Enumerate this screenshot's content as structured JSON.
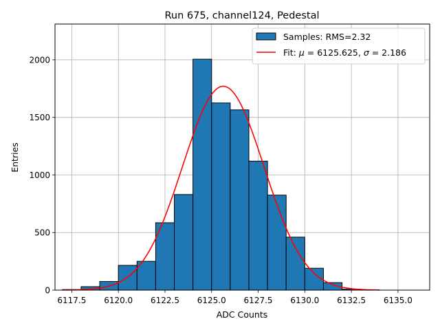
{
  "chart_data": {
    "type": "bar",
    "title": "Run 675, channel124, Pedestal",
    "xlabel": "ADC Counts",
    "ylabel": "Entries",
    "xlim": [
      6116.6,
      6136.7
    ],
    "ylim": [
      0,
      2310
    ],
    "grid": true,
    "legend_position": "top-right",
    "x_ticks": [
      {
        "value": 6117.5,
        "label": "6117.5"
      },
      {
        "value": 6120.0,
        "label": "6120.0"
      },
      {
        "value": 6122.5,
        "label": "6122.5"
      },
      {
        "value": 6125.0,
        "label": "6125.0"
      },
      {
        "value": 6127.5,
        "label": "6127.5"
      },
      {
        "value": 6130.0,
        "label": "6130.0"
      },
      {
        "value": 6132.5,
        "label": "6132.5"
      },
      {
        "value": 6135.0,
        "label": "6135.0"
      }
    ],
    "y_ticks": [
      {
        "value": 0,
        "label": "0"
      },
      {
        "value": 500,
        "label": "500"
      },
      {
        "value": 1000,
        "label": "1000"
      },
      {
        "value": 1500,
        "label": "1500"
      },
      {
        "value": 2000,
        "label": "2000"
      }
    ],
    "histogram": {
      "name": "Samples: RMS=2.32",
      "color": "#1f77b4",
      "edge_color": "#000000",
      "bins": [
        {
          "x0": 6117.0,
          "x1": 6118.0,
          "value": 5
        },
        {
          "x0": 6118.0,
          "x1": 6119.0,
          "value": 30
        },
        {
          "x0": 6119.0,
          "x1": 6120.0,
          "value": 75
        },
        {
          "x0": 6120.0,
          "x1": 6121.0,
          "value": 215
        },
        {
          "x0": 6121.0,
          "x1": 6122.0,
          "value": 250
        },
        {
          "x0": 6122.0,
          "x1": 6123.0,
          "value": 585
        },
        {
          "x0": 6123.0,
          "x1": 6124.0,
          "value": 830
        },
        {
          "x0": 6124.0,
          "x1": 6125.0,
          "value": 2005
        },
        {
          "x0": 6125.0,
          "x1": 6126.0,
          "value": 1625
        },
        {
          "x0": 6126.0,
          "x1": 6127.0,
          "value": 1565
        },
        {
          "x0": 6127.0,
          "x1": 6128.0,
          "value": 1120
        },
        {
          "x0": 6128.0,
          "x1": 6129.0,
          "value": 825
        },
        {
          "x0": 6129.0,
          "x1": 6130.0,
          "value": 460
        },
        {
          "x0": 6130.0,
          "x1": 6131.0,
          "value": 190
        },
        {
          "x0": 6131.0,
          "x1": 6132.0,
          "value": 65
        },
        {
          "x0": 6132.0,
          "x1": 6133.0,
          "value": 8
        },
        {
          "x0": 6133.0,
          "x1": 6134.0,
          "value": 3
        }
      ]
    },
    "fit": {
      "name": "Fit: μ = 6125.625, σ = 2.186",
      "label_parts": {
        "prefix": "Fit: ",
        "mu_symbol": "μ",
        "mu_text": " = 6125.625, ",
        "sigma_symbol": "σ",
        "sigma_text": " = 2.186"
      },
      "color": "#ff0000",
      "mu": 6125.625,
      "sigma": 2.186,
      "amplitude": 1770,
      "x_range": [
        6117.0,
        6134.0
      ]
    }
  }
}
